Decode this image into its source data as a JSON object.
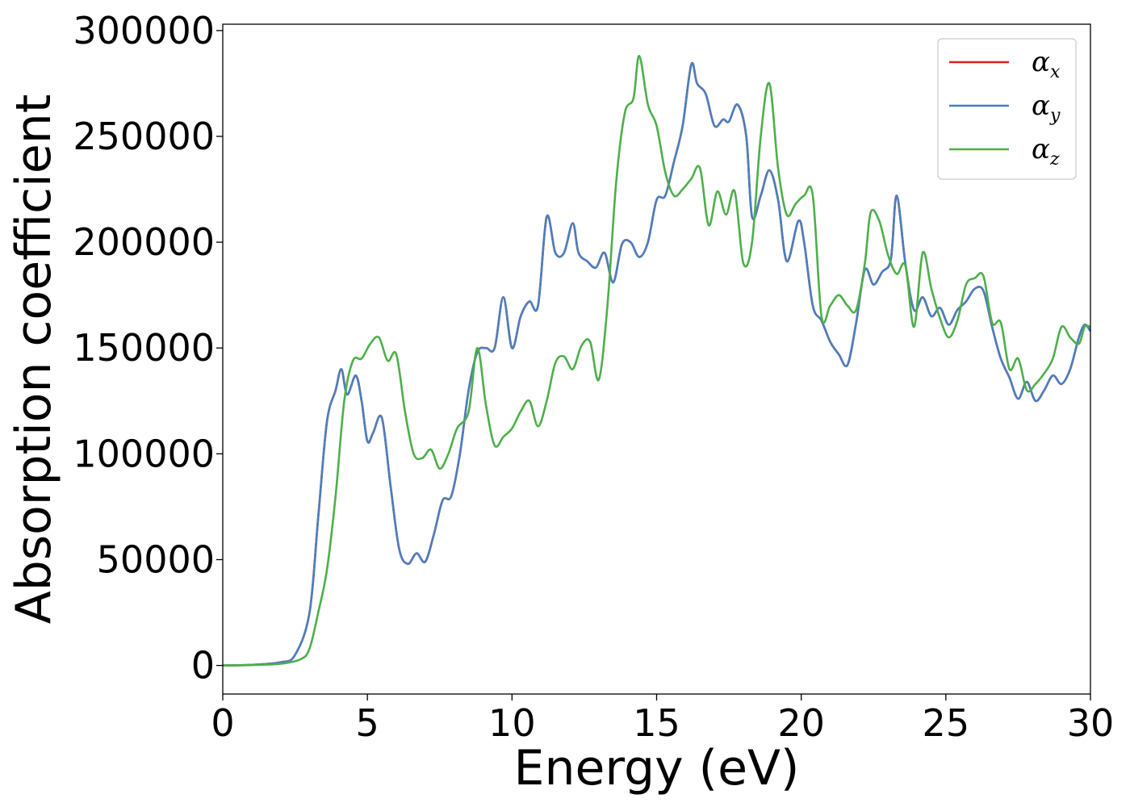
{
  "chart_data": {
    "type": "line",
    "title": "",
    "xlabel": "Energy (eV)",
    "ylabel": "Absorption coefficient",
    "xlim": [
      0,
      30
    ],
    "ylim": [
      -13500,
      303000
    ],
    "xticks": [
      0,
      5,
      10,
      15,
      20,
      25,
      30
    ],
    "yticks": [
      0,
      50000,
      100000,
      150000,
      200000,
      250000,
      300000
    ],
    "grid": false,
    "legend_position": "top-right",
    "series": [
      {
        "name": "αx",
        "legend_base": "α",
        "legend_sub": "x",
        "color": "#e41a1c",
        "x": [
          0,
          1,
          2,
          2.5,
          3,
          3.3,
          3.6,
          3.9,
          4.1,
          4.3,
          4.6,
          4.8,
          5.0,
          5.2,
          5.5,
          5.8,
          6.1,
          6.4,
          6.7,
          7.0,
          7.3,
          7.6,
          7.9,
          8.2,
          8.5,
          8.8,
          9.1,
          9.4,
          9.7,
          10.0,
          10.3,
          10.6,
          10.9,
          11.2,
          11.5,
          11.8,
          12.1,
          12.3,
          12.6,
          12.9,
          13.2,
          13.5,
          13.8,
          14.1,
          14.4,
          14.7,
          15.0,
          15.3,
          15.6,
          15.9,
          16.2,
          16.4,
          16.7,
          17.0,
          17.3,
          17.5,
          17.8,
          18.1,
          18.3,
          18.6,
          18.9,
          19.2,
          19.5,
          19.9,
          20.1,
          20.4,
          20.7,
          21.0,
          21.3,
          21.6,
          21.9,
          22.2,
          22.5,
          22.8,
          23.1,
          23.3,
          23.6,
          23.9,
          24.2,
          24.5,
          24.8,
          25.1,
          25.4,
          25.7,
          26.0,
          26.3,
          26.6,
          26.9,
          27.2,
          27.5,
          27.8,
          28.1,
          28.4,
          28.7,
          29.0,
          29.3,
          29.6,
          29.8,
          30.0
        ],
        "values": [
          0,
          300,
          1500,
          5000,
          25000,
          70000,
          115000,
          130000,
          140000,
          128000,
          137000,
          125000,
          106000,
          110000,
          117000,
          85000,
          55000,
          48000,
          53000,
          49000,
          62000,
          78000,
          80000,
          100000,
          130000,
          148000,
          150000,
          150000,
          174000,
          150000,
          165000,
          172000,
          170000,
          212000,
          195000,
          195000,
          209000,
          195000,
          191000,
          188000,
          195000,
          181000,
          199000,
          200000,
          193000,
          200000,
          220000,
          222000,
          238000,
          255000,
          284000,
          275000,
          270000,
          255000,
          258000,
          257000,
          265000,
          250000,
          212000,
          222000,
          234000,
          220000,
          191000,
          210000,
          200000,
          170000,
          163000,
          153000,
          147000,
          142000,
          162000,
          187000,
          180000,
          186000,
          192000,
          222000,
          190000,
          168000,
          174000,
          165000,
          169000,
          161000,
          168000,
          172000,
          178000,
          177000,
          160000,
          145000,
          136000,
          126000,
          134000,
          125000,
          130000,
          137000,
          133000,
          140000,
          155000,
          161000,
          158000
        ]
      },
      {
        "name": "αy",
        "legend_base": "α",
        "legend_sub": "y",
        "color": "#4a7fbf",
        "x": [
          0,
          1,
          2,
          2.5,
          3,
          3.3,
          3.6,
          3.9,
          4.1,
          4.3,
          4.6,
          4.8,
          5.0,
          5.2,
          5.5,
          5.8,
          6.1,
          6.4,
          6.7,
          7.0,
          7.3,
          7.6,
          7.9,
          8.2,
          8.5,
          8.8,
          9.1,
          9.4,
          9.7,
          10.0,
          10.3,
          10.6,
          10.9,
          11.2,
          11.5,
          11.8,
          12.1,
          12.3,
          12.6,
          12.9,
          13.2,
          13.5,
          13.8,
          14.1,
          14.4,
          14.7,
          15.0,
          15.3,
          15.6,
          15.9,
          16.2,
          16.4,
          16.7,
          17.0,
          17.3,
          17.5,
          17.8,
          18.1,
          18.3,
          18.6,
          18.9,
          19.2,
          19.5,
          19.9,
          20.1,
          20.4,
          20.7,
          21.0,
          21.3,
          21.6,
          21.9,
          22.2,
          22.5,
          22.8,
          23.1,
          23.3,
          23.6,
          23.9,
          24.2,
          24.5,
          24.8,
          25.1,
          25.4,
          25.7,
          26.0,
          26.3,
          26.6,
          26.9,
          27.2,
          27.5,
          27.8,
          28.1,
          28.4,
          28.7,
          29.0,
          29.3,
          29.6,
          29.8,
          30.0
        ],
        "values": [
          0,
          300,
          1500,
          5000,
          25000,
          70000,
          115000,
          130000,
          140000,
          128000,
          137000,
          125000,
          106000,
          110000,
          117000,
          85000,
          55000,
          48000,
          53000,
          49000,
          62000,
          78000,
          80000,
          100000,
          130000,
          148000,
          150000,
          150000,
          174000,
          150000,
          165000,
          172000,
          170000,
          212000,
          195000,
          195000,
          209000,
          195000,
          191000,
          188000,
          195000,
          181000,
          199000,
          200000,
          193000,
          200000,
          220000,
          222000,
          238000,
          255000,
          284000,
          275000,
          270000,
          255000,
          258000,
          257000,
          265000,
          250000,
          212000,
          222000,
          234000,
          220000,
          191000,
          210000,
          200000,
          170000,
          163000,
          153000,
          147000,
          142000,
          162000,
          187000,
          180000,
          186000,
          192000,
          222000,
          190000,
          168000,
          174000,
          165000,
          169000,
          161000,
          168000,
          172000,
          178000,
          177000,
          160000,
          145000,
          136000,
          126000,
          134000,
          125000,
          130000,
          137000,
          133000,
          140000,
          155000,
          161000,
          158000
        ]
      },
      {
        "name": "αz",
        "legend_base": "α",
        "legend_sub": "z",
        "color": "#4daf4a",
        "x": [
          0,
          1,
          2,
          2.7,
          3.0,
          3.3,
          3.6,
          3.9,
          4.2,
          4.5,
          4.8,
          5.1,
          5.4,
          5.7,
          6.0,
          6.3,
          6.6,
          6.9,
          7.2,
          7.5,
          7.8,
          8.1,
          8.5,
          8.8,
          9.1,
          9.4,
          9.7,
          10.0,
          10.3,
          10.6,
          10.9,
          11.2,
          11.5,
          11.8,
          12.1,
          12.4,
          12.7,
          13.0,
          13.3,
          13.6,
          13.9,
          14.2,
          14.4,
          14.7,
          15.0,
          15.3,
          15.6,
          15.9,
          16.2,
          16.5,
          16.8,
          17.1,
          17.4,
          17.7,
          18.0,
          18.3,
          18.6,
          18.9,
          19.2,
          19.5,
          19.8,
          20.1,
          20.4,
          20.7,
          21.0,
          21.3,
          21.6,
          21.9,
          22.2,
          22.4,
          22.7,
          23.0,
          23.3,
          23.6,
          23.9,
          24.2,
          24.5,
          24.8,
          25.1,
          25.4,
          25.7,
          26.0,
          26.3,
          26.6,
          26.9,
          27.2,
          27.5,
          27.8,
          28.1,
          28.4,
          28.7,
          29.0,
          29.3,
          29.6,
          29.8,
          30.0
        ],
        "values": [
          0,
          200,
          800,
          3000,
          8000,
          25000,
          45000,
          80000,
          125000,
          144000,
          145000,
          152000,
          155000,
          144000,
          147000,
          120000,
          100000,
          98000,
          102000,
          93000,
          100000,
          112000,
          120000,
          150000,
          123000,
          104000,
          108000,
          112000,
          120000,
          125000,
          113000,
          125000,
          143000,
          146000,
          140000,
          151000,
          153000,
          135000,
          170000,
          228000,
          261000,
          268000,
          288000,
          265000,
          255000,
          233000,
          222000,
          225000,
          230000,
          235000,
          208000,
          224000,
          213000,
          224000,
          190000,
          200000,
          250000,
          275000,
          235000,
          213000,
          218000,
          222000,
          222000,
          165000,
          170000,
          175000,
          170000,
          168000,
          190000,
          214000,
          210000,
          194000,
          185000,
          189000,
          160000,
          195000,
          178000,
          164000,
          155000,
          163000,
          180000,
          183000,
          184000,
          162000,
          162000,
          140000,
          145000,
          130000,
          133000,
          138000,
          145000,
          160000,
          155000,
          152000,
          160000,
          160000
        ]
      }
    ]
  }
}
